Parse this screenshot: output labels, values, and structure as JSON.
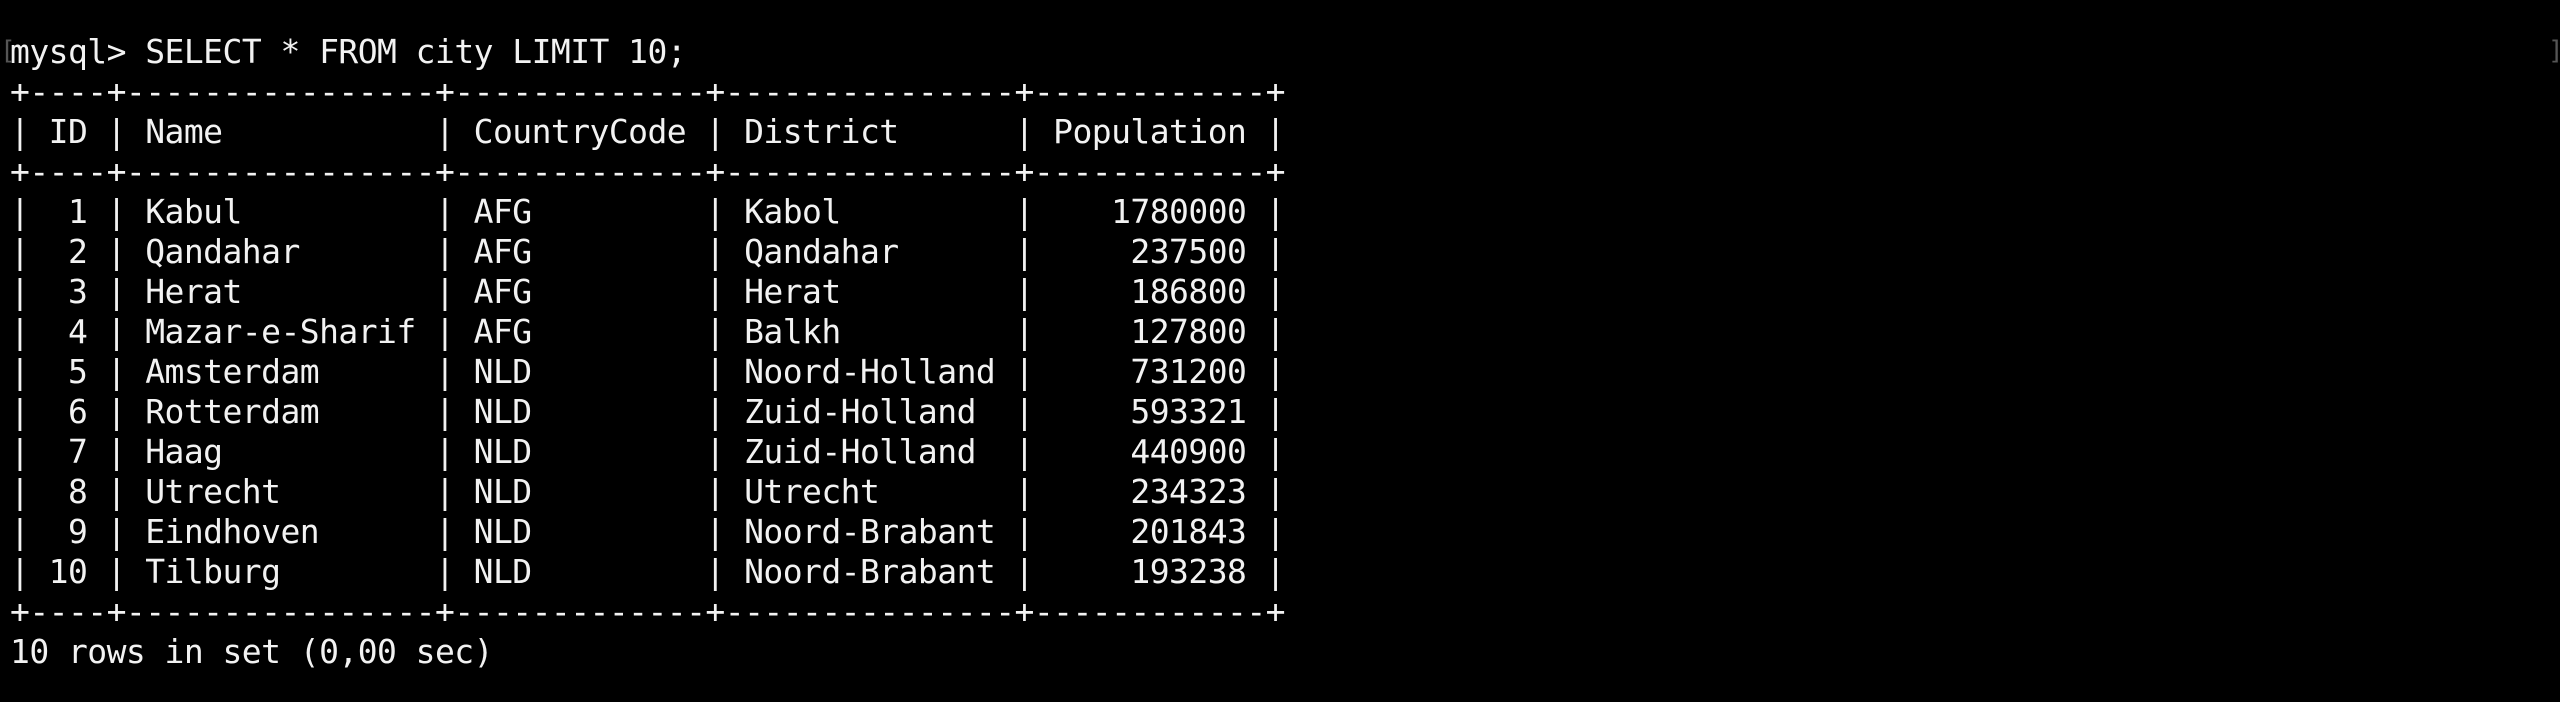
{
  "terminal": {
    "background": "#000000",
    "foreground": "#f2f2f2",
    "prompt": "mysql> ",
    "command": "SELECT * FROM city LIMIT 10;",
    "left_marker": "[",
    "right_marker": "]"
  },
  "table": {
    "border": "+----+----------------+-------------+---------------+------------+",
    "header": "| ID | Name           | CountryCode | District      | Population |",
    "columns": [
      "ID",
      "Name",
      "CountryCode",
      "District",
      "Population"
    ],
    "rows": [
      "|  1 | Kabul          | AFG         | Kabol         |    1780000 |",
      "|  2 | Qandahar       | AFG         | Qandahar      |     237500 |",
      "|  3 | Herat          | AFG         | Herat         |     186800 |",
      "|  4 | Mazar-e-Sharif | AFG         | Balkh         |     127800 |",
      "|  5 | Amsterdam      | NLD         | Noord-Holland |     731200 |",
      "|  6 | Rotterdam      | NLD         | Zuid-Holland  |     593321 |",
      "|  7 | Haag           | NLD         | Zuid-Holland  |     440900 |",
      "|  8 | Utrecht        | NLD         | Utrecht       |     234323 |",
      "|  9 | Eindhoven      | NLD         | Noord-Brabant |     201843 |",
      "| 10 | Tilburg        | NLD         | Noord-Brabant |     193238 |"
    ],
    "records": [
      {
        "id": "1",
        "name": "Kabul",
        "country_code": "AFG",
        "district": "Kabol",
        "population": "1780000"
      },
      {
        "id": "2",
        "name": "Qandahar",
        "country_code": "AFG",
        "district": "Qandahar",
        "population": "237500"
      },
      {
        "id": "3",
        "name": "Herat",
        "country_code": "AFG",
        "district": "Herat",
        "population": "186800"
      },
      {
        "id": "4",
        "name": "Mazar-e-Sharif",
        "country_code": "AFG",
        "district": "Balkh",
        "population": "127800"
      },
      {
        "id": "5",
        "name": "Amsterdam",
        "country_code": "NLD",
        "district": "Noord-Holland",
        "population": "731200"
      },
      {
        "id": "6",
        "name": "Rotterdam",
        "country_code": "NLD",
        "district": "Zuid-Holland",
        "population": "593321"
      },
      {
        "id": "7",
        "name": "Haag",
        "country_code": "NLD",
        "district": "Zuid-Holland",
        "population": "440900"
      },
      {
        "id": "8",
        "name": "Utrecht",
        "country_code": "NLD",
        "district": "Utrecht",
        "population": "234323"
      },
      {
        "id": "9",
        "name": "Eindhoven",
        "country_code": "NLD",
        "district": "Noord-Brabant",
        "population": "201843"
      },
      {
        "id": "10",
        "name": "Tilburg",
        "country_code": "NLD",
        "district": "Noord-Brabant",
        "population": "193238"
      }
    ]
  },
  "result": {
    "status": "10 rows in set (0,00 sec)"
  }
}
